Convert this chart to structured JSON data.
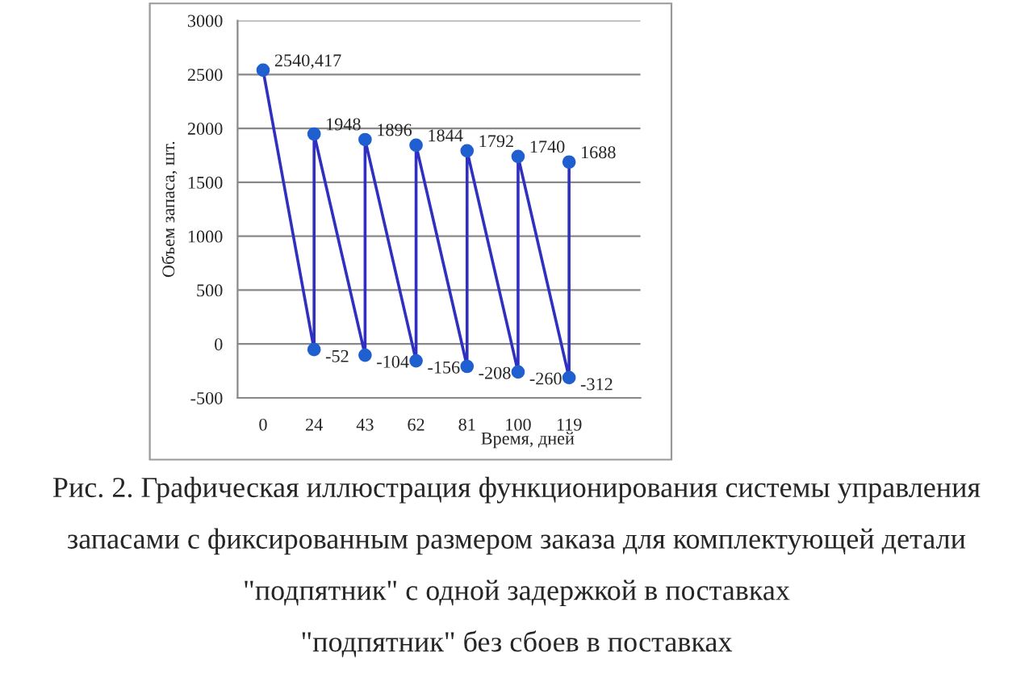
{
  "chart_data": {
    "type": "line",
    "categories": [
      "0",
      "24",
      "43",
      "62",
      "81",
      "100",
      "119"
    ],
    "series": [
      {
        "color": "#3030c0",
        "x": [
          "0",
          "24",
          "24",
          "43",
          "43",
          "62",
          "62",
          "81",
          "81",
          "100",
          "100",
          "119",
          "119"
        ],
        "values": [
          2540.417,
          -52,
          1948,
          -104,
          1896,
          -156,
          1844,
          -208,
          1792,
          -260,
          1740,
          -312,
          1688
        ],
        "value_labels": [
          "2540,417",
          "-52",
          "1948",
          "-104",
          "1896",
          "-156",
          "1844",
          "-208",
          "1792",
          "-260",
          "1740",
          "-312",
          "1688"
        ]
      }
    ],
    "ylim": [
      -500,
      3000
    ],
    "yticks": [
      -500,
      0,
      500,
      1000,
      1500,
      2000,
      2500,
      3000
    ],
    "grid": "y",
    "marker": "circle",
    "line_style": "solid",
    "legend": false,
    "ylabel": "Объем запаса, шт.",
    "xlabel": "Время, дней",
    "annotations": [
      "Рис. 2. Графическая иллюстрация функционирования системы управления",
      "запасами с фиксированным размером заказа для комплектующей детали",
      "\"подпятник\" с одной задержкой в поставках",
      "\"подпятник\" без сбоев в поставках"
    ]
  }
}
